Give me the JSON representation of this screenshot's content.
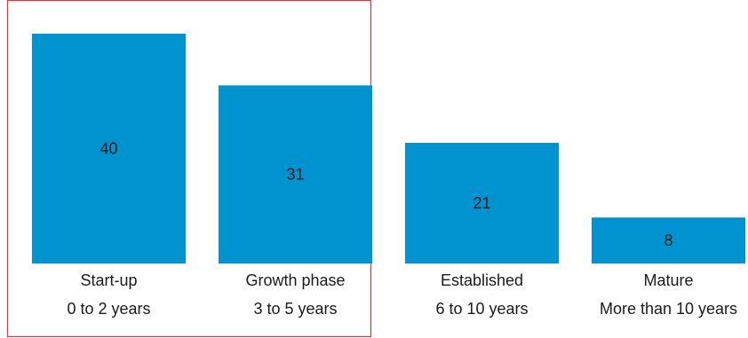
{
  "chart_data": {
    "type": "bar",
    "categories": [
      {
        "name": "Start-up",
        "sub": "0 to 2 years"
      },
      {
        "name": "Growth phase",
        "sub": "3 to 5 years"
      },
      {
        "name": "Established",
        "sub": "6 to 10 years"
      },
      {
        "name": "Mature",
        "sub": "More than 10 years"
      }
    ],
    "values": [
      40,
      31,
      21,
      8
    ],
    "ylim": [
      0,
      40
    ],
    "title": "",
    "xlabel": "",
    "ylabel": "",
    "grid": false,
    "highlighted_categories": [
      0,
      1
    ],
    "colors": {
      "bar": "#0093d0",
      "highlight_border": "#e8323c",
      "text": "#1a1a1a"
    }
  }
}
